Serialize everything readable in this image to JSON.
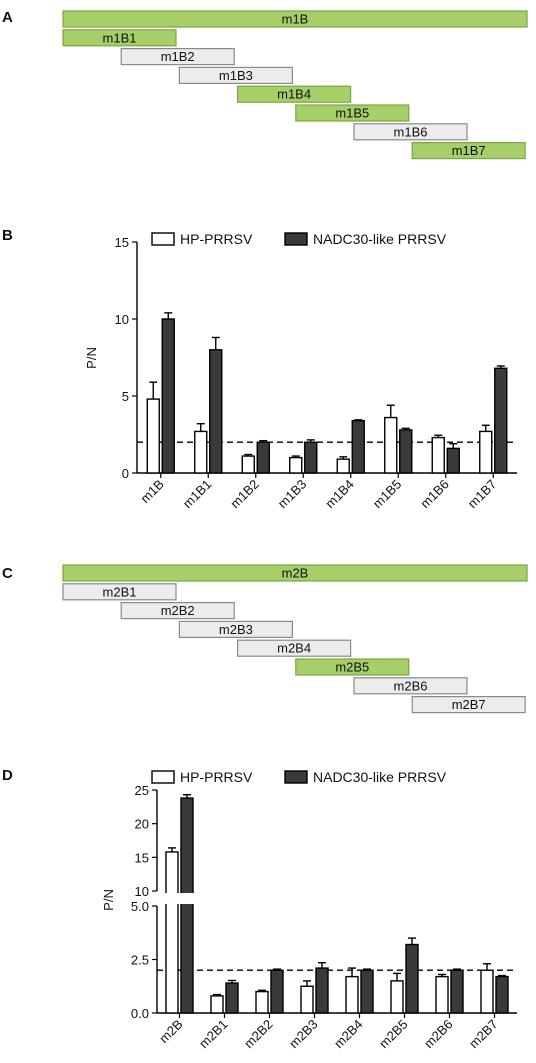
{
  "colors": {
    "green": "#a6cf6a",
    "green_stroke": "#7aa63e",
    "gray": "#ececec",
    "gray_stroke": "#8a8a8a",
    "hp_fill": "#ffffff",
    "nadc_fill": "#3a3a3a",
    "axis": "#000000"
  },
  "panels": {
    "a": {
      "letter": "A"
    },
    "b": {
      "letter": "B"
    },
    "c": {
      "letter": "C"
    },
    "d": {
      "letter": "D"
    }
  },
  "fragments_a": [
    {
      "label": "m1B",
      "highlight": true
    },
    {
      "label": "m1B1",
      "highlight": true
    },
    {
      "label": "m1B2",
      "highlight": false
    },
    {
      "label": "m1B3",
      "highlight": false
    },
    {
      "label": "m1B4",
      "highlight": true
    },
    {
      "label": "m1B5",
      "highlight": true
    },
    {
      "label": "m1B6",
      "highlight": false
    },
    {
      "label": "m1B7",
      "highlight": true
    }
  ],
  "fragments_c": [
    {
      "label": "m2B",
      "highlight": true
    },
    {
      "label": "m2B1",
      "highlight": false
    },
    {
      "label": "m2B2",
      "highlight": false
    },
    {
      "label": "m2B3",
      "highlight": false
    },
    {
      "label": "m2B4",
      "highlight": false
    },
    {
      "label": "m2B5",
      "highlight": true
    },
    {
      "label": "m2B6",
      "highlight": false
    },
    {
      "label": "m2B7",
      "highlight": false
    }
  ],
  "chart_data": [
    {
      "type": "bar",
      "panel": "B",
      "ylabel": "P/N",
      "ylim": [
        0,
        15
      ],
      "yticks": [
        "0",
        "5",
        "10",
        "15"
      ],
      "threshold": 2,
      "categories": [
        "m1B",
        "m1B1",
        "m1B2",
        "m1B3",
        "m1B4",
        "m1B5",
        "m1B6",
        "m1B7"
      ],
      "series": [
        {
          "name": "HP-PRRSV",
          "values": [
            4.8,
            2.7,
            1.1,
            1.0,
            0.9,
            3.6,
            2.3,
            2.7
          ],
          "errors": [
            1.1,
            0.5,
            0.1,
            0.1,
            0.15,
            0.8,
            0.15,
            0.4
          ]
        },
        {
          "name": "NADC30-like PRRSV",
          "values": [
            10.0,
            8.0,
            2.0,
            2.0,
            3.4,
            2.8,
            1.6,
            6.8
          ],
          "errors": [
            0.4,
            0.8,
            0.1,
            0.15,
            0.05,
            0.1,
            0.3,
            0.15
          ]
        }
      ],
      "grid": false,
      "legend_position": "top"
    },
    {
      "type": "bar",
      "panel": "D",
      "ylabel": "P/N",
      "broken_axis": true,
      "ylim_lower": [
        0,
        5
      ],
      "ylim_upper": [
        10,
        25
      ],
      "yticks_lower": [
        "0.0",
        "2.5",
        "5.0"
      ],
      "yticks_upper": [
        "10",
        "15",
        "20",
        "25"
      ],
      "threshold": 2,
      "categories": [
        "m2B",
        "m2B1",
        "m2B2",
        "m2B3",
        "m2B4",
        "m2B5",
        "m2B6",
        "m2B7"
      ],
      "series": [
        {
          "name": "HP-PRRSV",
          "values": [
            15.8,
            0.8,
            1.0,
            1.25,
            1.7,
            1.5,
            1.7,
            2.0
          ],
          "errors": [
            0.6,
            0.06,
            0.06,
            0.25,
            0.4,
            0.35,
            0.1,
            0.3
          ]
        },
        {
          "name": "NADC30-like PRRSV",
          "values": [
            23.8,
            1.4,
            2.0,
            2.1,
            2.0,
            3.2,
            2.0,
            1.7
          ],
          "errors": [
            0.5,
            0.12,
            0.05,
            0.25,
            0.05,
            0.3,
            0.05,
            0.05
          ]
        }
      ],
      "grid": false,
      "legend_position": "top"
    }
  ]
}
